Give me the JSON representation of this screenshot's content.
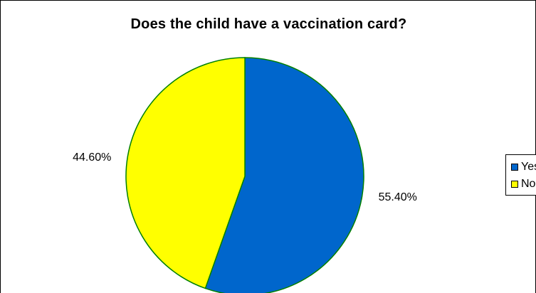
{
  "chart_data": {
    "type": "pie",
    "title": "Does the child have a vaccination card?",
    "categories": [
      "Yes",
      "No"
    ],
    "values": [
      55.4,
      44.6
    ],
    "data_labels": [
      "55.40%",
      "44.60%"
    ],
    "colors": [
      "#0066cc",
      "#ffff00"
    ],
    "edge_color": "#008000",
    "start_angle_deg": 0,
    "direction": "clockwise",
    "legend": "right"
  }
}
